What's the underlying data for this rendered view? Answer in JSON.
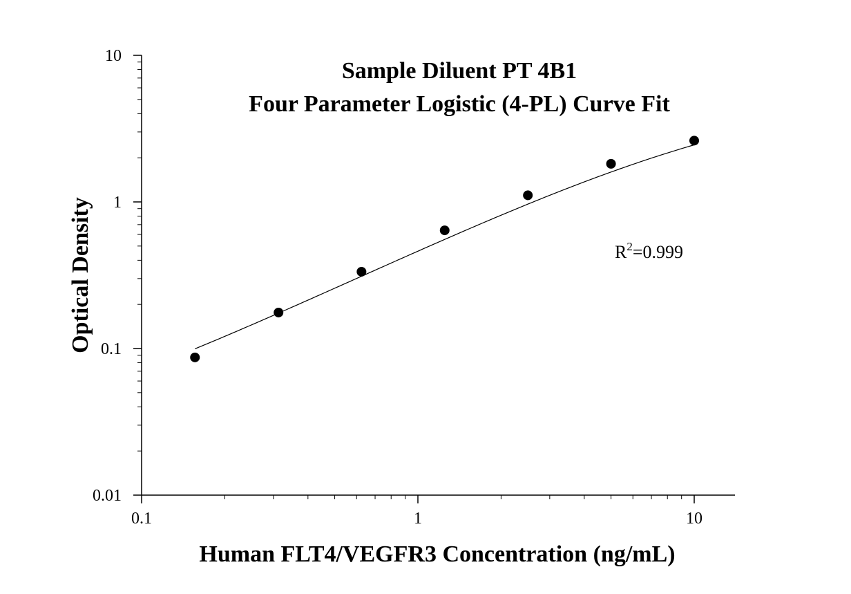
{
  "chart_data": {
    "type": "scatter",
    "title": "Sample Diluent PT 4B1",
    "subtitle": "Four Parameter Logistic (4-PL) Curve Fit",
    "xlabel": "Human FLT4/VEGFR3 Concentration (ng/mL)",
    "ylabel": "Optical Density",
    "x_scale": "log",
    "y_scale": "log",
    "xlim": [
      0.1,
      15
    ],
    "ylim": [
      0.01,
      10
    ],
    "x_ticks": [
      "0.1",
      "1",
      "10"
    ],
    "y_ticks": [
      "0.01",
      "0.1",
      "1",
      "10"
    ],
    "grid": false,
    "legend": "none",
    "series": [
      {
        "x": [
          0.156,
          0.313,
          0.625,
          1.25,
          2.5,
          5,
          10
        ],
        "y": [
          0.087,
          0.176,
          0.334,
          0.64,
          1.11,
          1.82,
          2.62
        ]
      }
    ],
    "fit": {
      "A": 0.015,
      "B": 0.93,
      "C": 15,
      "D": 6.0
    },
    "annotation": {
      "base": "R",
      "sup": "2",
      "rest": "=0.999"
    },
    "colors": {
      "marker": "#000000",
      "line": "#000000"
    }
  }
}
